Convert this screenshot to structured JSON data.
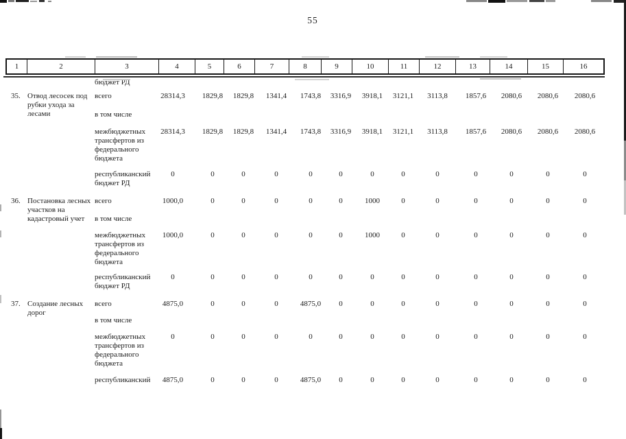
{
  "page": {
    "number": "55"
  },
  "table": {
    "columns": [
      "1",
      "2",
      "3",
      "4",
      "5",
      "6",
      "7",
      "8",
      "9",
      "10",
      "11",
      "12",
      "13",
      "14",
      "15",
      "16"
    ],
    "continuation_label": "бюджет РД",
    "items": [
      {
        "num": "35.",
        "name": "Отвод лесосек под рубки ухода за лесами",
        "subrows": [
          {
            "label": "всего",
            "values": [
              "28314,3",
              "1829,8",
              "1829,8",
              "1341,4",
              "1743,8",
              "3316,9",
              "3918,1",
              "3121,1",
              "3113,8",
              "1857,6",
              "2080,6",
              "2080,6",
              "2080,6"
            ]
          },
          {
            "label": "в том числе",
            "values": []
          },
          {
            "label": "межбюджетных трансфертов из федерального бюджета",
            "values": [
              "28314,3",
              "1829,8",
              "1829,8",
              "1341,4",
              "1743,8",
              "3316,9",
              "3918,1",
              "3121,1",
              "3113,8",
              "1857,6",
              "2080,6",
              "2080,6",
              "2080,6"
            ]
          },
          {
            "label": "республиканский бюджет РД",
            "values": [
              "0",
              "0",
              "0",
              "0",
              "0",
              "0",
              "0",
              "0",
              "0",
              "0",
              "0",
              "0",
              "0"
            ]
          }
        ]
      },
      {
        "num": "36.",
        "name": "Постановка лесных участков на кадастровый учет",
        "subrows": [
          {
            "label": "всего",
            "values": [
              "1000,0",
              "0",
              "0",
              "0",
              "0",
              "0",
              "1000",
              "0",
              "0",
              "0",
              "0",
              "0",
              "0"
            ]
          },
          {
            "label": "в том числе",
            "values": []
          },
          {
            "label": "межбюджетных трансфертов из федерального бюджета",
            "values": [
              "1000,0",
              "0",
              "0",
              "0",
              "0",
              "0",
              "1000",
              "0",
              "0",
              "0",
              "0",
              "0",
              "0"
            ]
          },
          {
            "label": "республиканский бюджет РД",
            "values": [
              "0",
              "0",
              "0",
              "0",
              "0",
              "0",
              "0",
              "0",
              "0",
              "0",
              "0",
              "0",
              "0"
            ]
          }
        ]
      },
      {
        "num": "37.",
        "name": "Создание лесных дорог",
        "subrows": [
          {
            "label": "всего",
            "values": [
              "4875,0",
              "0",
              "0",
              "0",
              "4875,0",
              "0",
              "0",
              "0",
              "0",
              "0",
              "0",
              "0",
              "0"
            ]
          },
          {
            "label": "в том числе",
            "values": []
          },
          {
            "label": "межбюджетных трансфертов из федерального бюджета",
            "values": [
              "0",
              "0",
              "0",
              "0",
              "0",
              "0",
              "0",
              "0",
              "0",
              "0",
              "0",
              "0",
              "0"
            ]
          },
          {
            "label": "республиканский",
            "values": [
              "4875,0",
              "0",
              "0",
              "0",
              "4875,0",
              "0",
              "0",
              "0",
              "0",
              "0",
              "0",
              "0",
              "0"
            ]
          }
        ]
      }
    ]
  }
}
